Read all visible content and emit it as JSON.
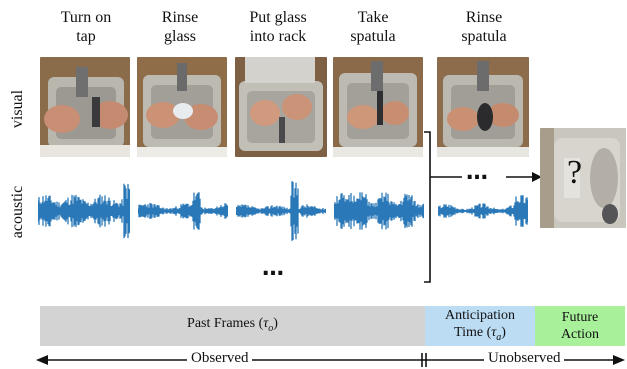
{
  "actions": [
    {
      "line1": "Turn on",
      "line2": "tap"
    },
    {
      "line1": "Rinse",
      "line2": "glass"
    },
    {
      "line1": "Put glass",
      "line2": "into rack"
    },
    {
      "line1": "Take",
      "line2": "spatula"
    },
    {
      "line1": "Rinse",
      "line2": "spatula"
    }
  ],
  "rows": {
    "visual": "visual",
    "acoustic": "acoustic"
  },
  "ellipsis": "…",
  "future_symbol": "?",
  "bars": {
    "past_prefix": "Past Frames (",
    "past_symbol": "τ",
    "past_sub": "o",
    "past_suffix": ")",
    "anticipation_line1": "Anticipation",
    "anticipation_prefix": "Time (",
    "anticipation_symbol": "τ",
    "anticipation_sub": "a",
    "anticipation_suffix": ")",
    "future_line1": "Future",
    "future_line2": "Action"
  },
  "axis": {
    "observed": "Observed",
    "unobserved": "Unobserved"
  },
  "colors": {
    "waveform": "#2a78b8",
    "past_bar": "#d3d3d3",
    "anticipation_bar": "#bcdcf3",
    "future_bar": "#a8f09a",
    "sink": "#b8b5ad",
    "wood": "#9a6a3e"
  }
}
